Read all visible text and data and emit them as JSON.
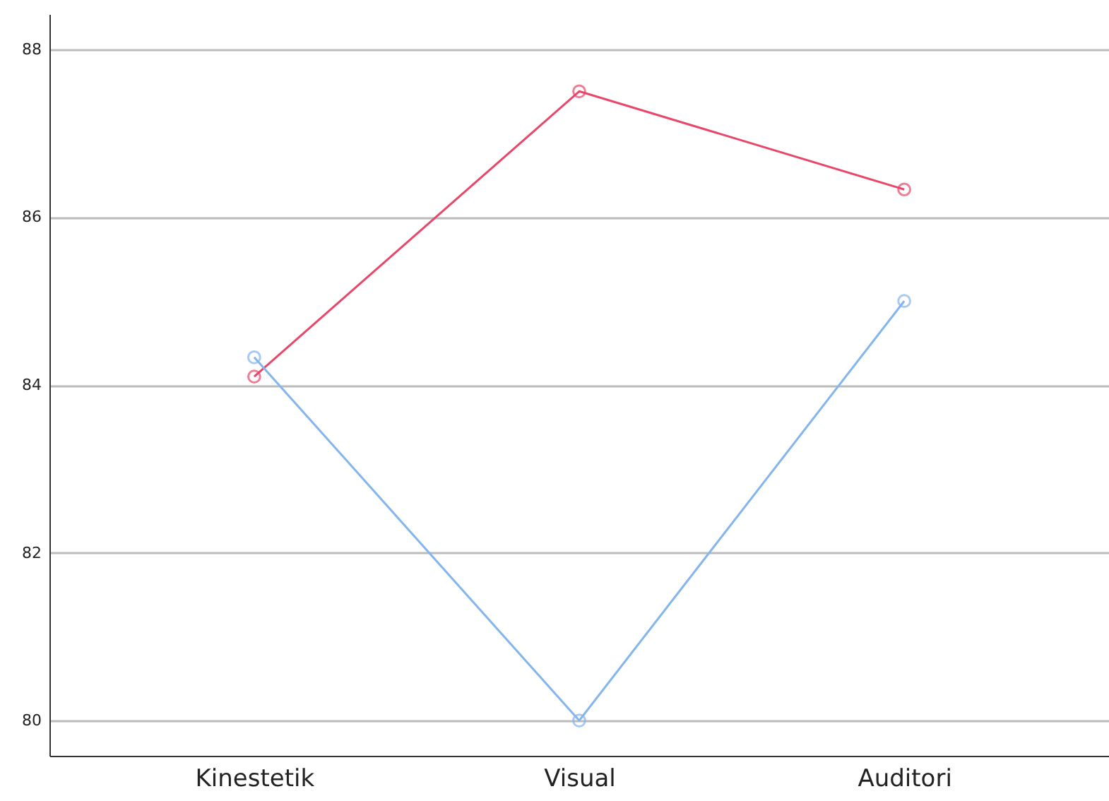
{
  "chart_data": {
    "type": "line",
    "categories": [
      "Kinestetik",
      "Visual",
      "Auditori"
    ],
    "series": [
      {
        "color": "#e8476a",
        "values": [
          84.1,
          87.5,
          86.33
        ]
      },
      {
        "color": "#84b5ec",
        "values": [
          84.33,
          80,
          85
        ]
      }
    ],
    "ylim": [
      79.58,
      88.42
    ],
    "yticks": [
      80,
      82,
      84,
      86,
      88
    ],
    "grid": "y",
    "marker": "circle",
    "line_style": "solid"
  }
}
